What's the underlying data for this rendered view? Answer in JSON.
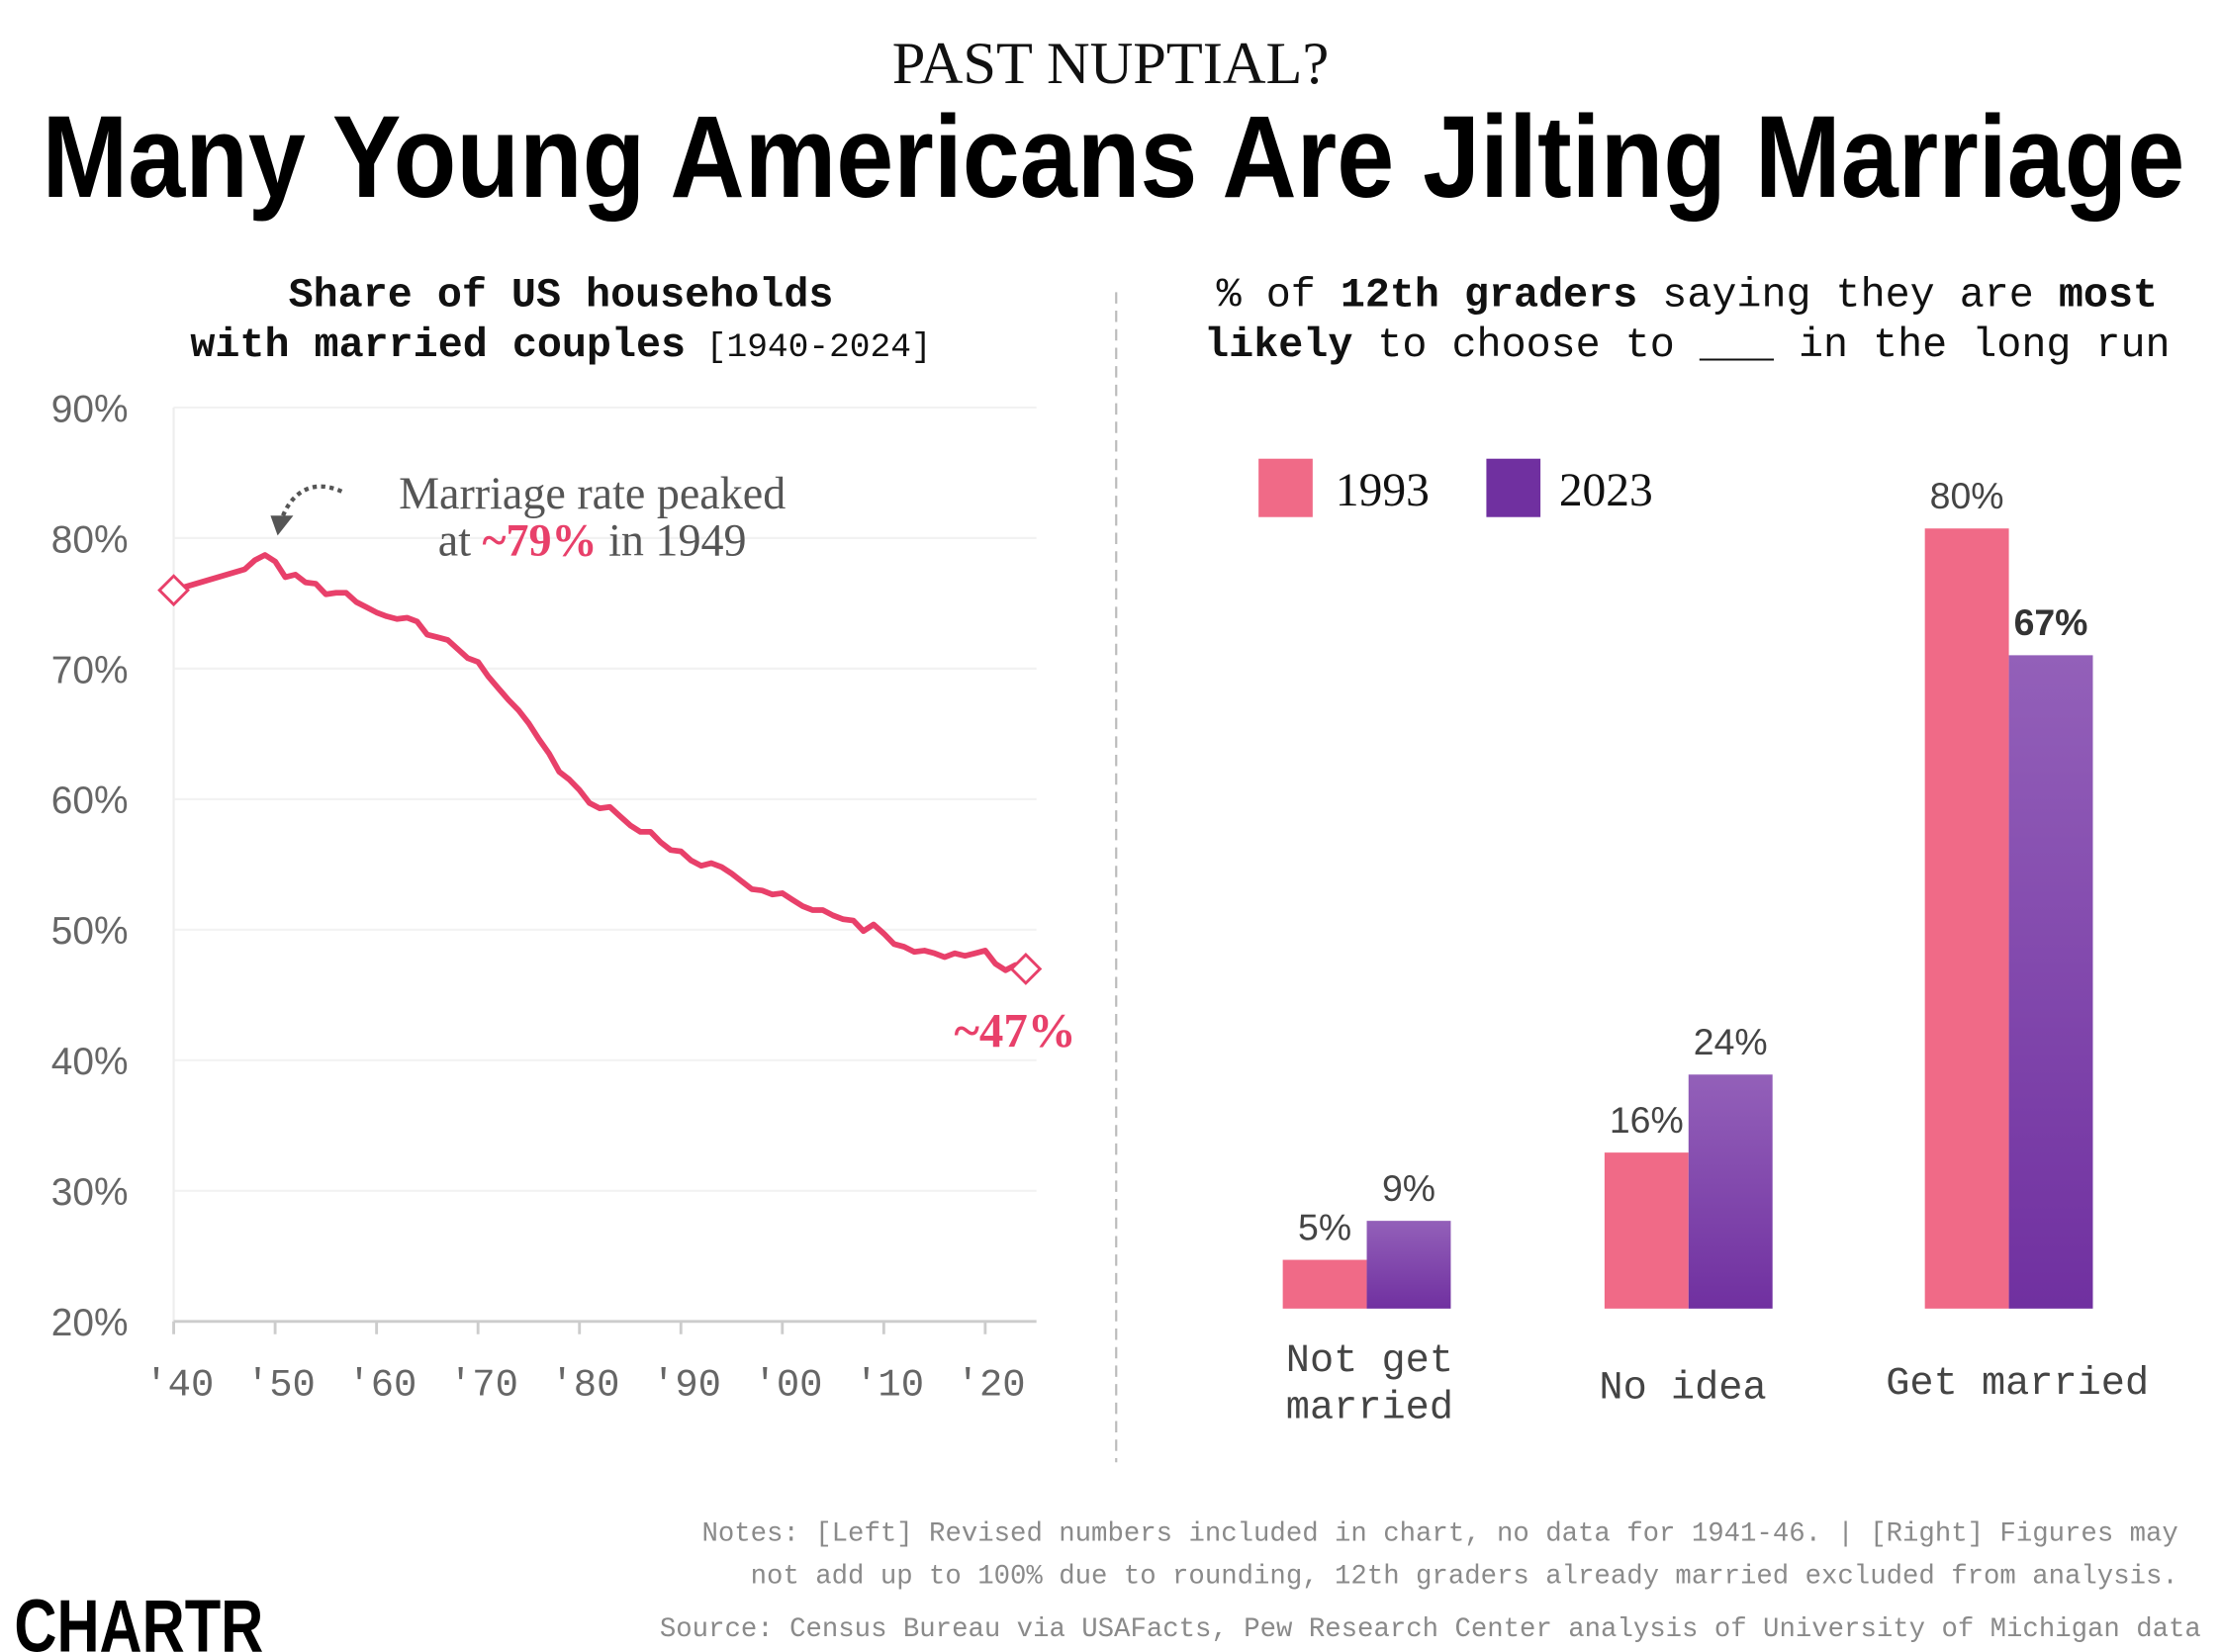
{
  "header": {
    "kicker": "PAST NUPTIAL?",
    "title": "Many Young Americans Are Jilting Marriage"
  },
  "left_subtitle": {
    "line1": "Share of US households",
    "line2_bold": "with married couples",
    "line2_regular": " [1940-2024]"
  },
  "right_subtitle": {
    "l1_a": "% of ",
    "l1_b": "12th graders",
    "l1_c": " saying they are ",
    "l1_d": "most",
    "l2_a": "likely",
    "l2_b": " to choose to ___ in the long run"
  },
  "annotation": {
    "line1": "Marriage rate peaked",
    "line2_a": "at ",
    "line2_b": "~79%",
    "line2_c": " in 1949",
    "end_label": "~47%"
  },
  "colors": {
    "line": "#e8406a",
    "bar_1993": "#f06a87",
    "bar_2023_top": "#9360b9",
    "bar_2023_bottom": "#7030a0",
    "grid": "#f2f2f2",
    "text_gray": "#555555"
  },
  "chart_data": [
    {
      "type": "line",
      "xlabel": "",
      "ylabel": "",
      "ylim": [
        20,
        90
      ],
      "xlim": [
        1940,
        2024
      ],
      "grid": true,
      "y_ticks": [
        "90%",
        "80%",
        "70%",
        "60%",
        "50%",
        "40%",
        "30%",
        "20%"
      ],
      "x_ticks": [
        "'40",
        "'50",
        "'60",
        "'70",
        "'80",
        "'90",
        "'00",
        "'10",
        "'20"
      ],
      "series": [
        {
          "x": [
            1940,
            1947,
            1948,
            1949,
            1950,
            1951,
            1952,
            1953,
            1954,
            1955,
            1956,
            1957,
            1958,
            1959,
            1960,
            1961,
            1962,
            1963,
            1964,
            1965,
            1966,
            1967,
            1968,
            1969,
            1970,
            1971,
            1972,
            1973,
            1974,
            1975,
            1976,
            1977,
            1978,
            1979,
            1980,
            1981,
            1982,
            1983,
            1984,
            1985,
            1986,
            1987,
            1988,
            1989,
            1990,
            1991,
            1992,
            1993,
            1994,
            1995,
            1996,
            1997,
            1998,
            1999,
            2000,
            2001,
            2002,
            2003,
            2004,
            2005,
            2006,
            2007,
            2008,
            2009,
            2010,
            2011,
            2012,
            2013,
            2014,
            2015,
            2016,
            2017,
            2018,
            2019,
            2020,
            2021,
            2022,
            2023,
            2024
          ],
          "y": [
            76.0,
            77.6,
            78.3,
            78.7,
            78.2,
            77.0,
            77.2,
            76.6,
            76.5,
            75.7,
            75.8,
            75.8,
            75.1,
            74.7,
            74.3,
            74.0,
            73.8,
            73.9,
            73.6,
            72.6,
            72.4,
            72.2,
            71.5,
            70.8,
            70.5,
            69.4,
            68.5,
            67.6,
            66.8,
            65.8,
            64.6,
            63.5,
            62.1,
            61.5,
            60.7,
            59.7,
            59.3,
            59.4,
            58.7,
            58.0,
            57.5,
            57.5,
            56.7,
            56.1,
            56.0,
            55.3,
            54.9,
            55.1,
            54.8,
            54.3,
            53.7,
            53.1,
            53.0,
            52.7,
            52.8,
            52.3,
            51.8,
            51.5,
            51.5,
            51.1,
            50.8,
            50.7,
            49.9,
            50.4,
            49.7,
            48.9,
            48.7,
            48.3,
            48.4,
            48.2,
            47.9,
            48.2,
            48.0,
            48.2,
            48.4,
            47.4,
            46.9,
            47.3,
            47.0
          ]
        }
      ]
    },
    {
      "type": "bar",
      "categories": [
        [
          "Not get",
          "married"
        ],
        [
          "No idea"
        ],
        [
          "Get married"
        ]
      ],
      "series": [
        {
          "name": "1993",
          "values": [
            5,
            16,
            80
          ],
          "labels": [
            "5%",
            "16%",
            "80%"
          ]
        },
        {
          "name": "2023",
          "values": [
            9,
            24,
            67
          ],
          "labels": [
            "9%",
            "24%",
            "67%"
          ]
        }
      ],
      "legend": "top-left"
    }
  ],
  "footer": {
    "notes_line1": "Notes: [Left] Revised numbers included in chart, no data for 1941-46. | [Right] Figures may",
    "notes_line2": "not add up to 100% due to rounding, 12th graders already married excluded from analysis.",
    "source": "Source: Census Bureau via USAFacts, Pew Research Center analysis of University of Michigan data",
    "logo": "CHARTR"
  }
}
